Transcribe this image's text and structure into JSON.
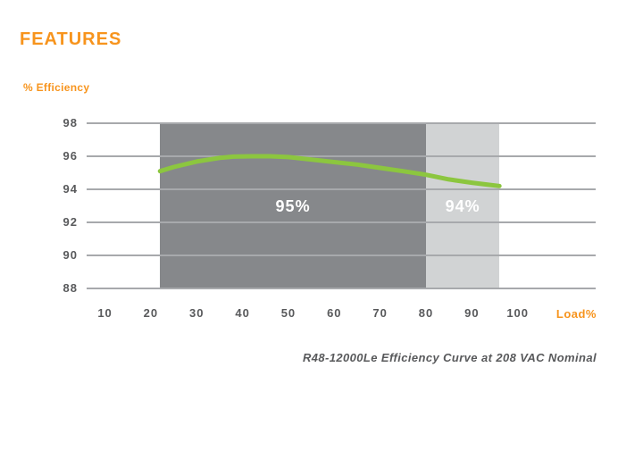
{
  "page": {
    "title": "FEATURES"
  },
  "chart": {
    "y_axis_title": "% Efficiency",
    "x_axis_title": "Load%",
    "caption": "R48-12000Le Efficiency Curve at 208 VAC Nominal"
  },
  "colors": {
    "accent_orange": "#F7941D",
    "curve_green": "#8CC63F",
    "band_dark_gray": "#86888B",
    "band_light_gray": "#D1D3D4",
    "gridline_gray": "#A7A9AC",
    "text_gray": "#58595B",
    "band_label_white": "#FFFFFF"
  },
  "chart_data": {
    "type": "line",
    "title": "R48-12000Le Efficiency Curve at 208 VAC Nominal",
    "xlabel": "Load%",
    "ylabel": "% Efficiency",
    "xlim": [
      6,
      117
    ],
    "ylim": [
      88,
      98
    ],
    "x_ticks": [
      10,
      20,
      30,
      40,
      50,
      60,
      70,
      80,
      90,
      100
    ],
    "y_ticks": [
      98,
      96,
      94,
      92,
      90,
      88
    ],
    "grid": "horizontal",
    "legend": "none",
    "series": [
      {
        "name": "Efficiency",
        "color": "#8CC63F",
        "points": [
          [
            22,
            95.1
          ],
          [
            25,
            95.35
          ],
          [
            30,
            95.68
          ],
          [
            35,
            95.9
          ],
          [
            38,
            95.98
          ],
          [
            42,
            96.0
          ],
          [
            46,
            96.0
          ],
          [
            50,
            95.95
          ],
          [
            55,
            95.8
          ],
          [
            60,
            95.65
          ],
          [
            65,
            95.5
          ],
          [
            70,
            95.3
          ],
          [
            75,
            95.1
          ],
          [
            80,
            94.88
          ],
          [
            85,
            94.6
          ],
          [
            90,
            94.4
          ],
          [
            93,
            94.3
          ],
          [
            96,
            94.2
          ]
        ]
      }
    ],
    "bands": [
      {
        "from": 22,
        "to": 80,
        "label": "95%",
        "color": "#86888B"
      },
      {
        "from": 80,
        "to": 96,
        "label": "94%",
        "color": "#D1D3D4"
      }
    ]
  }
}
